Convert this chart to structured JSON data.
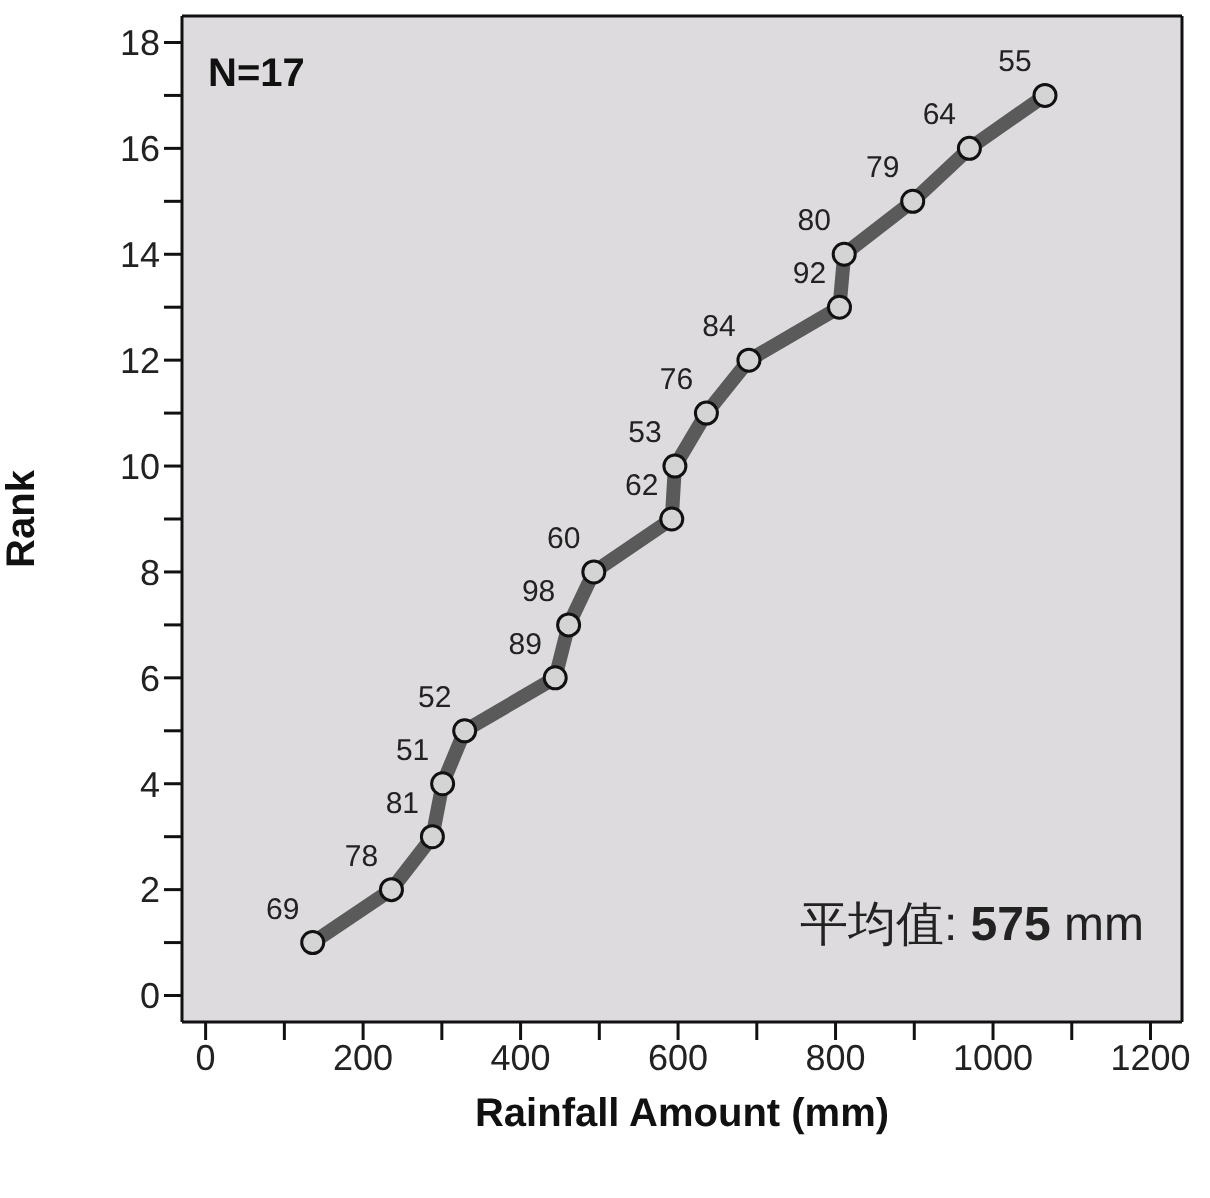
{
  "chart_data": {
    "type": "line",
    "xlabel": "Rainfall Amount (mm)",
    "ylabel": "Rank",
    "annotations": [
      "N=17",
      "平均值: 575 mm",
      {
        "text": "69",
        "x": 136,
        "y": 1
      },
      {
        "text": "78",
        "x": 236,
        "y": 2
      },
      {
        "text": "81",
        "x": 288,
        "y": 3
      },
      {
        "text": "51",
        "x": 301,
        "y": 4
      },
      {
        "text": "52",
        "x": 329,
        "y": 5
      },
      {
        "text": "89",
        "x": 444,
        "y": 6
      },
      {
        "text": "98",
        "x": 461,
        "y": 7
      },
      {
        "text": "60",
        "x": 493,
        "y": 8
      },
      {
        "text": "62",
        "x": 592,
        "y": 9
      },
      {
        "text": "53",
        "x": 596,
        "y": 10
      },
      {
        "text": "76",
        "x": 636,
        "y": 11
      },
      {
        "text": "84",
        "x": 690,
        "y": 12
      },
      {
        "text": "92",
        "x": 805,
        "y": 13
      },
      {
        "text": "80",
        "x": 811,
        "y": 14
      },
      {
        "text": "79",
        "x": 898,
        "y": 15
      },
      {
        "text": "64",
        "x": 970,
        "y": 16
      },
      {
        "text": "55",
        "x": 1066,
        "y": 17
      }
    ],
    "x": [
      136,
      236,
      288,
      301,
      329,
      444,
      461,
      493,
      592,
      596,
      636,
      690,
      805,
      811,
      898,
      970,
      1066
    ],
    "series": [
      {
        "color": "#5a5a5a",
        "values": [
          1,
          2,
          3,
          4,
          5,
          6,
          7,
          8,
          9,
          10,
          11,
          12,
          13,
          14,
          15,
          16,
          17
        ]
      }
    ],
    "marker": "circle",
    "line_style": "solid",
    "xlim": [
      -30,
      1240
    ],
    "xticks": [
      0,
      {
        "value": 100,
        "label": null
      },
      200,
      {
        "value": 300,
        "label": null
      },
      400,
      {
        "value": 500,
        "label": null
      },
      600,
      {
        "value": 700,
        "label": null
      },
      800,
      {
        "value": 900,
        "label": null
      },
      1000,
      {
        "value": 1100,
        "label": null
      },
      1200
    ],
    "ylim": [
      -0.5,
      18.5
    ],
    "yticks": [
      0,
      {
        "value": 1,
        "label": null
      },
      2,
      {
        "value": 3,
        "label": null
      },
      4,
      {
        "value": 5,
        "label": null
      },
      6,
      {
        "value": 7,
        "label": null
      },
      8,
      {
        "value": 9,
        "label": null
      },
      10,
      {
        "value": 11,
        "label": null
      },
      12,
      {
        "value": 13,
        "label": null
      },
      14,
      {
        "value": 15,
        "label": null
      },
      16,
      {
        "value": 17,
        "label": null
      },
      18
    ]
  }
}
